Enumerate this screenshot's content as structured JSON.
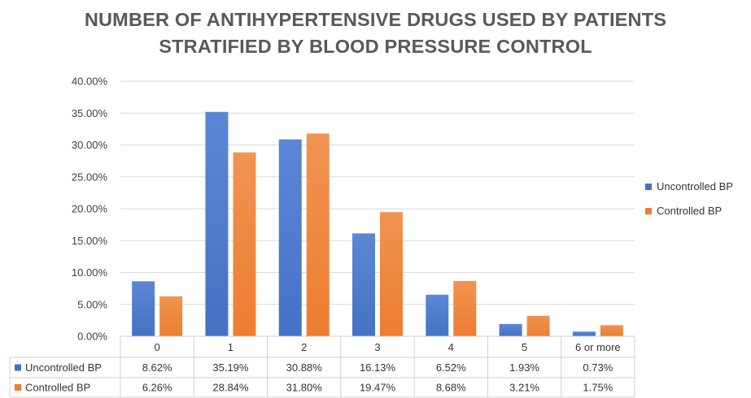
{
  "chart_title_line1": "NUMBER OF ANTIHYPERTENSIVE DRUGS USED BY PATIENTS",
  "chart_title_line2": "STRATIFIED BY BLOOD PRESSURE CONTROL",
  "chart_data": {
    "type": "bar",
    "title": "NUMBER OF ANTIHYPERTENSIVE DRUGS USED BY PATIENTS STRATIFIED BY BLOOD PRESSURE CONTROL",
    "xlabel": "",
    "ylabel": "",
    "categories": [
      "0",
      "1",
      "2",
      "3",
      "4",
      "5",
      "6 or more"
    ],
    "series": [
      {
        "name": "Uncontrolled BP",
        "color": "#4472C4",
        "values": [
          8.62,
          35.19,
          30.88,
          16.13,
          6.52,
          1.93,
          0.73
        ],
        "labels": [
          "8.62%",
          "35.19%",
          "30.88%",
          "16.13%",
          "6.52%",
          "1.93%",
          "0.73%"
        ]
      },
      {
        "name": "Controlled BP",
        "color": "#ED7D31",
        "values": [
          6.26,
          28.84,
          31.8,
          19.47,
          8.68,
          3.21,
          1.75
        ],
        "labels": [
          "6.26%",
          "28.84%",
          "31.80%",
          "19.47%",
          "8.68%",
          "3.21%",
          "1.75%"
        ]
      }
    ],
    "ylim": [
      0,
      40
    ],
    "yticks": [
      "0.00%",
      "5.00%",
      "10.00%",
      "15.00%",
      "20.00%",
      "25.00%",
      "30.00%",
      "35.00%",
      "40.00%"
    ],
    "grid": true,
    "legend_position": "right",
    "data_table": true
  }
}
